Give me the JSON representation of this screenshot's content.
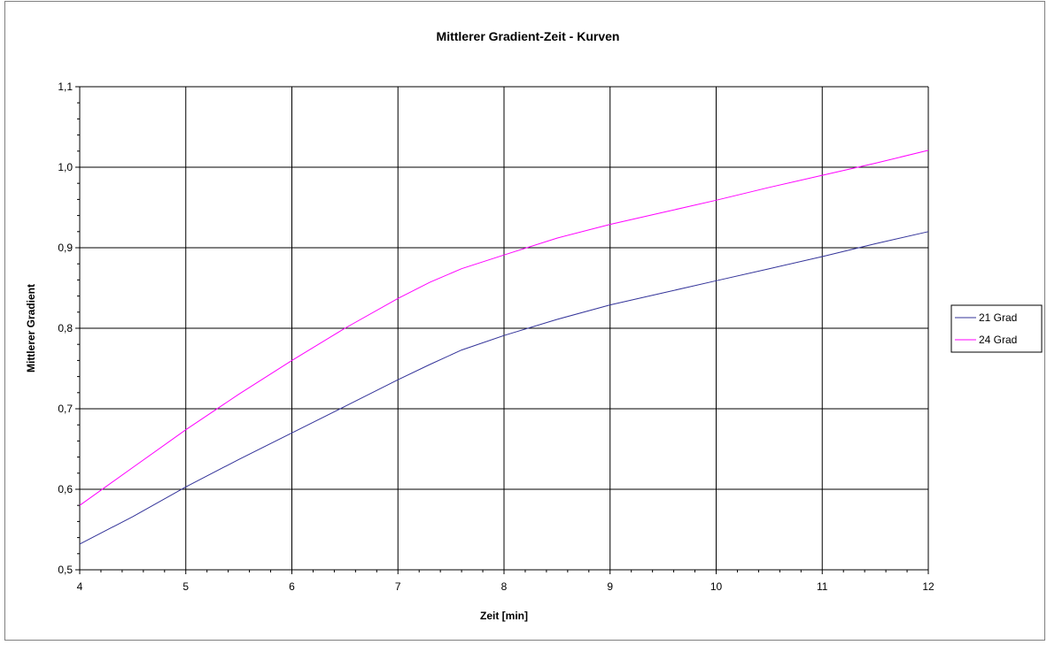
{
  "chart_data": {
    "type": "line",
    "title": "Mittlerer Gradient-Zeit - Kurven",
    "xlabel": "Zeit [min]",
    "ylabel": "Mittlerer Gradient",
    "xlim": [
      4,
      12
    ],
    "ylim": [
      0.5,
      1.1
    ],
    "x_ticks": [
      "4",
      "5",
      "6",
      "7",
      "8",
      "9",
      "10",
      "11",
      "12"
    ],
    "y_ticks": [
      "0,5",
      "0,6",
      "0,7",
      "0,8",
      "0,9",
      "1,0",
      "1,1"
    ],
    "grid": true,
    "legend_position": "right",
    "series": [
      {
        "name": "21 Grad",
        "color": "#333399",
        "x": [
          4,
          4.5,
          5,
          5.5,
          6,
          6.5,
          7,
          7.3,
          7.6,
          8,
          8.5,
          9,
          9.5,
          10,
          10.5,
          11,
          11.5,
          12
        ],
        "y": [
          0.532,
          0.566,
          0.603,
          0.637,
          0.67,
          0.703,
          0.736,
          0.755,
          0.773,
          0.791,
          0.811,
          0.829,
          0.844,
          0.859,
          0.874,
          0.889,
          0.905,
          0.92
        ]
      },
      {
        "name": "24 Grad",
        "color": "#ff00ff",
        "x": [
          4,
          4.5,
          5,
          5.5,
          6,
          6.5,
          7,
          7.3,
          7.6,
          8,
          8.5,
          9,
          9.5,
          10,
          10.5,
          11,
          11.5,
          12
        ],
        "y": [
          0.58,
          0.627,
          0.674,
          0.718,
          0.76,
          0.8,
          0.837,
          0.857,
          0.874,
          0.891,
          0.912,
          0.929,
          0.944,
          0.959,
          0.975,
          0.99,
          1.005,
          1.021
        ]
      }
    ]
  }
}
